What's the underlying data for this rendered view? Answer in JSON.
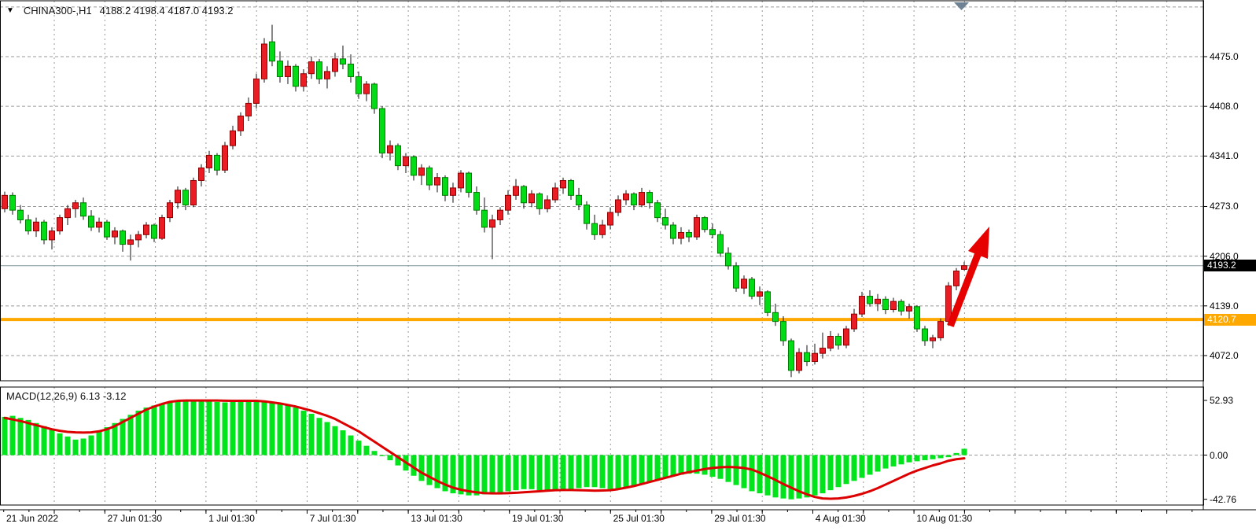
{
  "header": {
    "symbol_period": "CHINA300-,H1",
    "ohlc": "4188.2 4198.4 4187.0 4193.2"
  },
  "indicator": {
    "label": "MACD(12,26,9) 6.13 -3.12"
  },
  "price_axis": {
    "ticks": [
      "4475.0",
      "4408.0",
      "4341.0",
      "4273.0",
      "4206.0",
      "4139.0",
      "4072.0"
    ],
    "tick_values": [
      4475.0,
      4408.0,
      4341.0,
      4273.0,
      4206.0,
      4139.0,
      4072.0
    ],
    "bid_badge": {
      "label": "4193.2",
      "price": 4193.2,
      "bg": "#000000",
      "fg": "#ffffff"
    },
    "line_badge": {
      "label": "4120.7",
      "price": 4120.7,
      "bg": "#FFA800",
      "fg": "#ffffff"
    }
  },
  "macd_axis": {
    "ticks": [
      "52.93",
      "0.00",
      "-42.76"
    ],
    "tick_values": [
      52.93,
      0.0,
      -42.76
    ]
  },
  "time_axis": {
    "labels": [
      "21 Jun 2022",
      "27 Jun 01:30",
      "1 Jul 01:30",
      "7 Jul 01:30",
      "13 Jul 01:30",
      "19 Jul 01:30",
      "25 Jul 01:30",
      "29 Jul 01:30",
      "4 Aug 01:30",
      "10 Aug 01:30"
    ]
  },
  "colors": {
    "bull_fill": "#EC1C24",
    "bull_stroke": "#8B0000",
    "bear_fill": "#00DD16",
    "bear_stroke": "#007A00",
    "wick": "#111111",
    "grid": "#999999",
    "border": "#000000",
    "macd_bar": "#00E41C",
    "macd_signal": "#DD0000",
    "orange_line": "#FFA800",
    "bid_line": "#8496A0",
    "arrow": "#E60000",
    "shift_marker": "#6E8293"
  },
  "chart_data": {
    "type": "candlestick+macd",
    "title": "CHINA300-,H1 4188.2 4198.4 4187.0 4193.2",
    "symbol": "CHINA300-",
    "timeframe": "H1",
    "last_ohlc": {
      "open": 4188.2,
      "high": 4198.4,
      "low": 4187.0,
      "close": 4193.2
    },
    "price_axis_range": [
      4072.0,
      4475.0
    ],
    "macd_axis_range": [
      -42.76,
      52.93
    ],
    "grid": "dashed",
    "legend_position": "none",
    "annotations": {
      "horizontal_line_price": 4120.7,
      "bid_line_price": 4193.2,
      "trend_arrow": "up, red, from 4120 area toward 4290 area at right edge",
      "macd_params": "12,26,9",
      "macd_current": 6.13,
      "macd_signal_current": -3.12
    },
    "candles": [
      [
        4270,
        4293,
        4265,
        4288
      ],
      [
        4288,
        4292,
        4262,
        4268
      ],
      [
        4268,
        4275,
        4250,
        4255
      ],
      [
        4255,
        4262,
        4235,
        4240
      ],
      [
        4240,
        4258,
        4232,
        4252
      ],
      [
        4252,
        4255,
        4222,
        4228
      ],
      [
        4228,
        4245,
        4215,
        4240
      ],
      [
        4240,
        4262,
        4235,
        4258
      ],
      [
        4258,
        4275,
        4248,
        4270
      ],
      [
        4270,
        4282,
        4258,
        4278
      ],
      [
        4278,
        4285,
        4255,
        4260
      ],
      [
        4260,
        4268,
        4240,
        4245
      ],
      [
        4245,
        4258,
        4238,
        4252
      ],
      [
        4252,
        4255,
        4228,
        4232
      ],
      [
        4232,
        4245,
        4222,
        4240
      ],
      [
        4240,
        4242,
        4212,
        4222
      ],
      [
        4222,
        4235,
        4200,
        4228
      ],
      [
        4228,
        4240,
        4218,
        4235
      ],
      [
        4235,
        4252,
        4230,
        4248
      ],
      [
        4248,
        4250,
        4225,
        4230
      ],
      [
        4230,
        4262,
        4228,
        4258
      ],
      [
        4258,
        4282,
        4252,
        4278
      ],
      [
        4278,
        4300,
        4270,
        4295
      ],
      [
        4295,
        4298,
        4268,
        4275
      ],
      [
        4275,
        4312,
        4272,
        4308
      ],
      [
        4308,
        4330,
        4300,
        4325
      ],
      [
        4325,
        4348,
        4318,
        4342
      ],
      [
        4342,
        4345,
        4315,
        4322
      ],
      [
        4322,
        4360,
        4318,
        4355
      ],
      [
        4355,
        4382,
        4350,
        4375
      ],
      [
        4375,
        4400,
        4368,
        4395
      ],
      [
        4395,
        4420,
        4388,
        4412
      ],
      [
        4412,
        4452,
        4405,
        4445
      ],
      [
        4445,
        4500,
        4440,
        4492
      ],
      [
        4495,
        4518,
        4462,
        4469
      ],
      [
        4469,
        4482,
        4440,
        4448
      ],
      [
        4448,
        4470,
        4438,
        4462
      ],
      [
        4462,
        4465,
        4428,
        4435
      ],
      [
        4435,
        4458,
        4428,
        4452
      ],
      [
        4452,
        4475,
        4445,
        4468
      ],
      [
        4468,
        4472,
        4438,
        4445
      ],
      [
        4445,
        4462,
        4432,
        4455
      ],
      [
        4455,
        4480,
        4448,
        4472
      ],
      [
        4472,
        4490,
        4458,
        4465
      ],
      [
        4465,
        4478,
        4440,
        4448
      ],
      [
        4448,
        4455,
        4418,
        4425
      ],
      [
        4425,
        4442,
        4415,
        4438
      ],
      [
        4438,
        4440,
        4398,
        4405
      ],
      [
        4405,
        4408,
        4338,
        4345
      ],
      [
        4345,
        4362,
        4335,
        4355
      ],
      [
        4355,
        4358,
        4322,
        4328
      ],
      [
        4328,
        4345,
        4318,
        4340
      ],
      [
        4340,
        4342,
        4308,
        4315
      ],
      [
        4315,
        4330,
        4302,
        4325
      ],
      [
        4325,
        4328,
        4295,
        4302
      ],
      [
        4302,
        4318,
        4292,
        4312
      ],
      [
        4312,
        4315,
        4280,
        4288
      ],
      [
        4288,
        4305,
        4278,
        4298
      ],
      [
        4298,
        4322,
        4292,
        4318
      ],
      [
        4318,
        4320,
        4285,
        4292
      ],
      [
        4292,
        4300,
        4262,
        4268
      ],
      [
        4268,
        4285,
        4238,
        4245
      ],
      [
        4245,
        4262,
        4202,
        4255
      ],
      [
        4255,
        4272,
        4248,
        4268
      ],
      [
        4268,
        4295,
        4262,
        4288
      ],
      [
        4288,
        4310,
        4282,
        4300
      ],
      [
        4300,
        4302,
        4270,
        4278
      ],
      [
        4278,
        4295,
        4272,
        4290
      ],
      [
        4290,
        4292,
        4262,
        4270
      ],
      [
        4270,
        4288,
        4265,
        4282
      ],
      [
        4282,
        4305,
        4278,
        4298
      ],
      [
        4298,
        4312,
        4290,
        4308
      ],
      [
        4308,
        4310,
        4282,
        4288
      ],
      [
        4288,
        4298,
        4268,
        4275
      ],
      [
        4275,
        4280,
        4242,
        4250
      ],
      [
        4250,
        4262,
        4228,
        4235
      ],
      [
        4235,
        4255,
        4230,
        4248
      ],
      [
        4248,
        4272,
        4242,
        4265
      ],
      [
        4265,
        4288,
        4260,
        4282
      ],
      [
        4282,
        4295,
        4275,
        4290
      ],
      [
        4290,
        4292,
        4268,
        4275
      ],
      [
        4275,
        4298,
        4272,
        4292
      ],
      [
        4292,
        4295,
        4270,
        4278
      ],
      [
        4278,
        4282,
        4252,
        4258
      ],
      [
        4258,
        4270,
        4242,
        4248
      ],
      [
        4248,
        4252,
        4222,
        4230
      ],
      [
        4230,
        4245,
        4222,
        4238
      ],
      [
        4238,
        4242,
        4225,
        4232
      ],
      [
        4232,
        4262,
        4228,
        4258
      ],
      [
        4258,
        4260,
        4238,
        4242
      ],
      [
        4242,
        4250,
        4230,
        4235
      ],
      [
        4235,
        4240,
        4205,
        4210
      ],
      [
        4210,
        4218,
        4188,
        4193
      ],
      [
        4193,
        4198,
        4158,
        4163
      ],
      [
        4163,
        4180,
        4155,
        4175
      ],
      [
        4175,
        4178,
        4148,
        4152
      ],
      [
        4152,
        4165,
        4140,
        4158
      ],
      [
        4158,
        4160,
        4125,
        4130
      ],
      [
        4130,
        4142,
        4112,
        4118
      ],
      [
        4118,
        4125,
        4085,
        4092
      ],
      [
        4092,
        4095,
        4043,
        4052
      ],
      [
        4052,
        4082,
        4048,
        4076
      ],
      [
        4076,
        4086,
        4058,
        4064
      ],
      [
        4064,
        4088,
        4060,
        4075
      ],
      [
        4075,
        4103,
        4068,
        4082
      ],
      [
        4082,
        4105,
        4078,
        4098
      ],
      [
        4098,
        4102,
        4080,
        4086
      ],
      [
        4086,
        4112,
        4082,
        4108
      ],
      [
        4108,
        4135,
        4104,
        4128
      ],
      [
        4128,
        4158,
        4124,
        4152
      ],
      [
        4152,
        4160,
        4138,
        4142
      ],
      [
        4142,
        4155,
        4132,
        4148
      ],
      [
        4148,
        4152,
        4128,
        4134
      ],
      [
        4134,
        4150,
        4130,
        4145
      ],
      [
        4145,
        4148,
        4126,
        4132
      ],
      [
        4132,
        4142,
        4122,
        4138
      ],
      [
        4138,
        4140,
        4104,
        4108
      ],
      [
        4108,
        4112,
        4085,
        4092
      ],
      [
        4092,
        4100,
        4082,
        4096
      ],
      [
        4096,
        4122,
        4092,
        4118
      ],
      [
        4118,
        4171,
        4112,
        4166
      ],
      [
        4166,
        4190,
        4160,
        4186
      ],
      [
        4188.2,
        4198.4,
        4187.0,
        4193.2
      ]
    ],
    "macd": {
      "histogram": [
        37,
        38,
        36,
        34,
        31,
        28,
        25,
        21,
        18,
        15,
        16,
        19,
        23,
        27,
        31,
        35,
        39,
        43,
        46,
        48,
        50,
        51,
        52,
        53,
        53,
        52.5,
        52,
        51.5,
        51,
        51.5,
        52,
        52.5,
        53,
        52.5,
        51.5,
        50,
        48,
        46,
        43,
        40,
        36,
        32,
        28,
        24,
        19,
        14,
        9,
        4,
        -1,
        -5,
        -10,
        -15,
        -20,
        -25,
        -29,
        -32,
        -35,
        -37,
        -38,
        -39,
        -39,
        -38,
        -37,
        -36,
        -35,
        -34,
        -33,
        -33,
        -34,
        -35,
        -35,
        -34,
        -33,
        -32,
        -31,
        -31,
        -32,
        -33,
        -33,
        -32,
        -30,
        -28,
        -26,
        -24,
        -22,
        -20,
        -19,
        -18,
        -18,
        -19,
        -21,
        -23,
        -26,
        -29,
        -32,
        -35,
        -37,
        -39,
        -41,
        -42,
        -42.8,
        -42,
        -41,
        -39,
        -37,
        -34,
        -31,
        -28,
        -25,
        -22,
        -19,
        -16,
        -13,
        -11,
        -9,
        -7,
        -6,
        -5,
        -4,
        -3,
        -2,
        2,
        6.13
      ],
      "signal": [
        36,
        34.5,
        33,
        31,
        29,
        27,
        25,
        23.5,
        22.5,
        22,
        21.8,
        22,
        23,
        25,
        28,
        32,
        36,
        40,
        44,
        47,
        49.5,
        51.5,
        52.5,
        52.8,
        52.8,
        52.8,
        52.8,
        52.8,
        52.6,
        52.5,
        52.5,
        52.5,
        52.5,
        52,
        51,
        50,
        48.5,
        47,
        45,
        43,
        40.5,
        38,
        35,
        31,
        27,
        23,
        18,
        13,
        8,
        3,
        -2,
        -7,
        -12,
        -17,
        -21,
        -25,
        -28.5,
        -31.5,
        -33.5,
        -35,
        -36,
        -36.8,
        -37,
        -37,
        -36.8,
        -36.5,
        -36,
        -35.5,
        -35,
        -34.5,
        -34,
        -33.8,
        -33.8,
        -34,
        -34.2,
        -34.5,
        -34.3,
        -34,
        -33,
        -31.5,
        -30,
        -28,
        -26,
        -24,
        -22,
        -20,
        -18,
        -16.5,
        -15,
        -13.5,
        -12.5,
        -11.8,
        -11.5,
        -11.8,
        -12.5,
        -14,
        -17,
        -20.5,
        -24,
        -28,
        -31.5,
        -35,
        -38,
        -40.5,
        -42,
        -42.3,
        -42,
        -41,
        -39.5,
        -37.5,
        -35,
        -32,
        -28.5,
        -25,
        -21.5,
        -18,
        -15,
        -12.5,
        -10,
        -8,
        -5.5,
        -4,
        -3.12
      ]
    }
  }
}
